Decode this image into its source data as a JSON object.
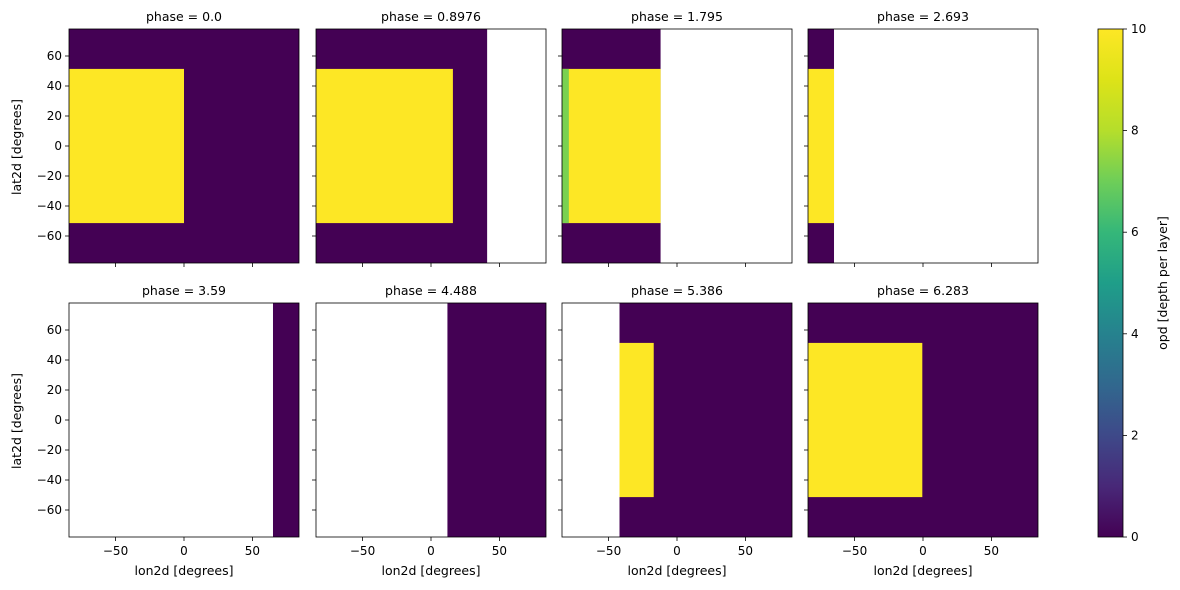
{
  "chart_data": {
    "type": "heatmap",
    "xlabel": "lon2d [degrees]",
    "ylabel": "lat2d [degrees]",
    "xlim": [
      -84,
      84
    ],
    "ylim": [
      -78,
      78
    ],
    "x_ticks": [
      -50,
      0,
      50
    ],
    "y_ticks": [
      60,
      40,
      20,
      0,
      -20,
      -40,
      -60
    ],
    "colorbar": {
      "label": "opd [depth per layer]",
      "range": [
        0,
        10
      ],
      "ticks": [
        0,
        2,
        4,
        6,
        8,
        10
      ],
      "colormap": "viridis"
    },
    "colors": {
      "low": "#440154",
      "high": "#fde725",
      "edge": "#7ad151"
    },
    "panels": [
      {
        "title": "phase = 0.0",
        "regions": [
          {
            "x": [
              -84,
              84
            ],
            "y": [
              -78,
              78
            ],
            "value": 0
          },
          {
            "x": [
              -84,
              0
            ],
            "y": [
              -51.4,
              51.4
            ],
            "value": 10
          }
        ]
      },
      {
        "title": "phase = 0.8976",
        "regions": [
          {
            "x": [
              -84,
              41
            ],
            "y": [
              -78,
              78
            ],
            "value": 0
          },
          {
            "x": [
              -84,
              16
            ],
            "y": [
              -51.4,
              51.4
            ],
            "value": 10
          }
        ]
      },
      {
        "title": "phase = 1.795",
        "regions": [
          {
            "x": [
              -84,
              -12
            ],
            "y": [
              -78,
              78
            ],
            "value": 0
          },
          {
            "x": [
              -84,
              -12
            ],
            "y": [
              -51.4,
              51.4
            ],
            "value": 10
          },
          {
            "x": [
              -84,
              -79
            ],
            "y": [
              -51.4,
              51.4
            ],
            "value": 8.6
          }
        ]
      },
      {
        "title": "phase = 2.693",
        "regions": [
          {
            "x": [
              -84,
              -65
            ],
            "y": [
              -78,
              78
            ],
            "value": 0
          },
          {
            "x": [
              -84,
              -65
            ],
            "y": [
              -51.4,
              51.4
            ],
            "value": 10
          }
        ]
      },
      {
        "title": "phase = 3.59",
        "regions": [
          {
            "x": [
              65,
              84
            ],
            "y": [
              -78,
              78
            ],
            "value": 0
          }
        ]
      },
      {
        "title": "phase = 4.488",
        "regions": [
          {
            "x": [
              12,
              84
            ],
            "y": [
              -78,
              78
            ],
            "value": 0
          }
        ]
      },
      {
        "title": "phase = 5.386",
        "regions": [
          {
            "x": [
              -42,
              84
            ],
            "y": [
              -78,
              78
            ],
            "value": 0
          },
          {
            "x": [
              -42,
              -17
            ],
            "y": [
              -51.4,
              51.4
            ],
            "value": 10
          }
        ]
      },
      {
        "title": "phase = 6.283",
        "regions": [
          {
            "x": [
              -84,
              84
            ],
            "y": [
              -78,
              78
            ],
            "value": 0
          },
          {
            "x": [
              -84,
              -0.5
            ],
            "y": [
              -51.4,
              51.4
            ],
            "value": 10
          }
        ]
      }
    ]
  }
}
